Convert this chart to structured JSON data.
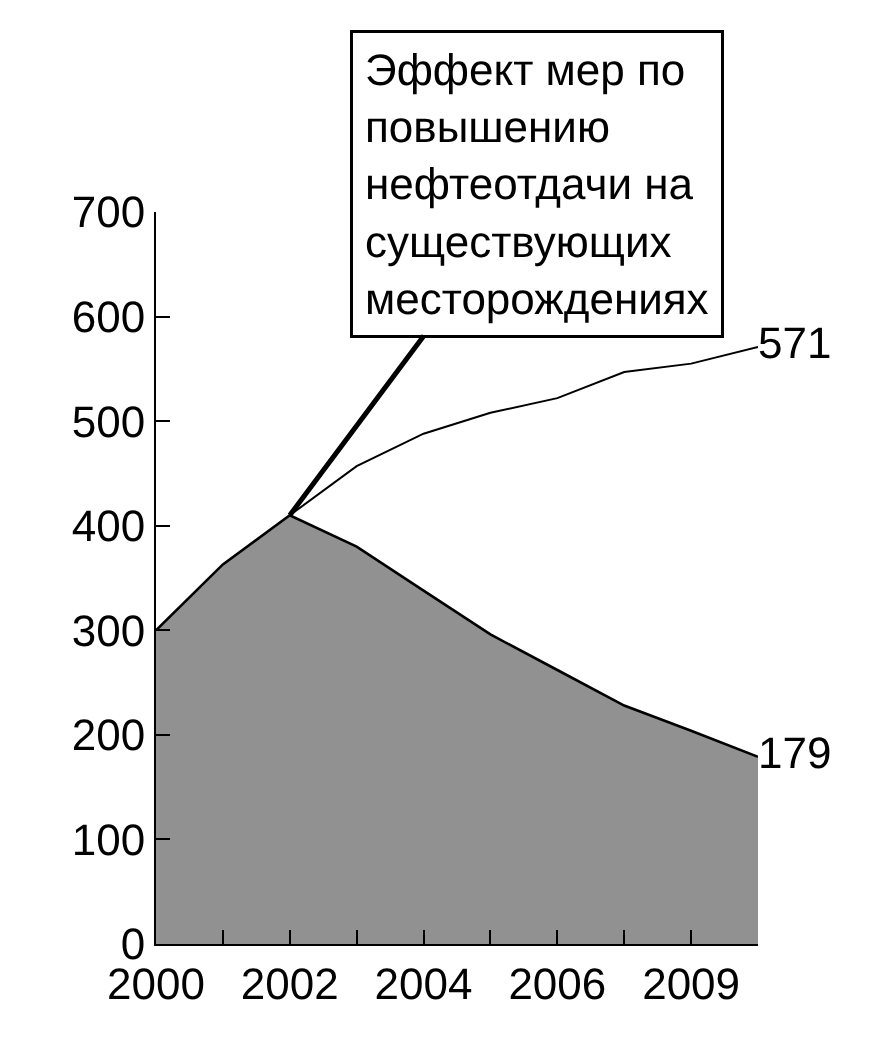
{
  "chart_data": {
    "type": "area",
    "categories": [
      "2000",
      null,
      "2002",
      null,
      "2004",
      null,
      "2006",
      null,
      "2009",
      null
    ],
    "series": [
      {
        "color": "#919191",
        "values": [
          300,
          363,
          410,
          380,
          338,
          296,
          262,
          228,
          204,
          179
        ],
        "value_labels": [
          null,
          null,
          null,
          null,
          null,
          null,
          null,
          null,
          null,
          "179"
        ]
      },
      {
        "type": "line",
        "color": "#000000",
        "values": [
          null,
          null,
          410,
          457,
          488,
          508,
          522,
          547,
          555,
          571
        ],
        "value_labels": [
          null,
          null,
          null,
          null,
          null,
          null,
          null,
          null,
          null,
          "571"
        ]
      }
    ],
    "ylim": [
      0,
      700
    ],
    "yticks": [
      0,
      100,
      200,
      300,
      400,
      500,
      600,
      700
    ],
    "annotations": [
      {
        "text": "Эффект мер по\nповышению\nнефтеотдачи на\nсуществующих\nместорождениях",
        "x": "2002",
        "y": 410
      }
    ]
  }
}
